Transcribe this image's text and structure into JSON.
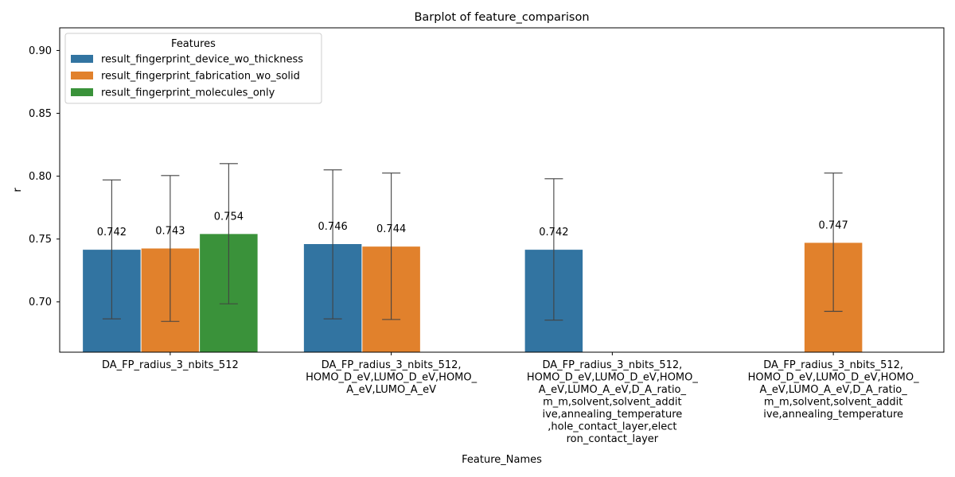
{
  "chart_data": {
    "type": "bar",
    "title": "Barplot of feature_comparison",
    "xlabel": "Feature_Names",
    "ylabel": "r",
    "ylim": [
      0.66,
      0.918
    ],
    "yticks": [
      "0.70",
      "0.75",
      "0.80",
      "0.85",
      "0.90"
    ],
    "grid": false,
    "legend_position": "top-left",
    "legend_title": "Features",
    "categories": [
      [
        "DA_FP_radius_3_nbits_512"
      ],
      [
        "DA_FP_radius_3_nbits_512,",
        "HOMO_D_eV,LUMO_D_eV,HOMO_",
        "A_eV,LUMO_A_eV"
      ],
      [
        "DA_FP_radius_3_nbits_512,",
        "HOMO_D_eV,LUMO_D_eV,HOMO_",
        "A_eV,LUMO_A_eV,D_A_ratio_",
        "m_m,solvent,solvent_addit",
        "ive,annealing_temperature",
        ",hole_contact_layer,elect",
        "ron_contact_layer"
      ],
      [
        "DA_FP_radius_3_nbits_512,",
        "HOMO_D_eV,LUMO_D_eV,HOMO_",
        "A_eV,LUMO_A_eV,D_A_ratio_",
        "m_m,solvent,solvent_addit",
        "ive,annealing_temperature"
      ]
    ],
    "series": [
      {
        "name": "result_fingerprint_device_wo_thickness",
        "color": "#3274a1",
        "values": [
          0.7415,
          0.746,
          0.7415,
          null
        ],
        "labels": [
          "0.742",
          "0.746",
          "0.742",
          null
        ],
        "err_low": [
          0.6865,
          0.6865,
          0.6855,
          null
        ],
        "err_high": [
          0.797,
          0.805,
          0.798,
          null
        ]
      },
      {
        "name": "result_fingerprint_fabrication_wo_solid",
        "color": "#e1812c",
        "values": [
          0.7425,
          0.744,
          null,
          0.747
        ],
        "labels": [
          "0.743",
          "0.744",
          null,
          "0.747"
        ],
        "err_low": [
          0.6845,
          0.686,
          null,
          0.6925
        ],
        "err_high": [
          0.8005,
          0.8025,
          null,
          0.8025
        ]
      },
      {
        "name": "result_fingerprint_molecules_only",
        "color": "#3a923a",
        "values": [
          0.754,
          null,
          null,
          null
        ],
        "labels": [
          "0.754",
          null,
          null,
          null
        ],
        "err_low": [
          0.6985,
          null,
          null,
          null
        ],
        "err_high": [
          0.81,
          null,
          null,
          null
        ]
      }
    ]
  }
}
